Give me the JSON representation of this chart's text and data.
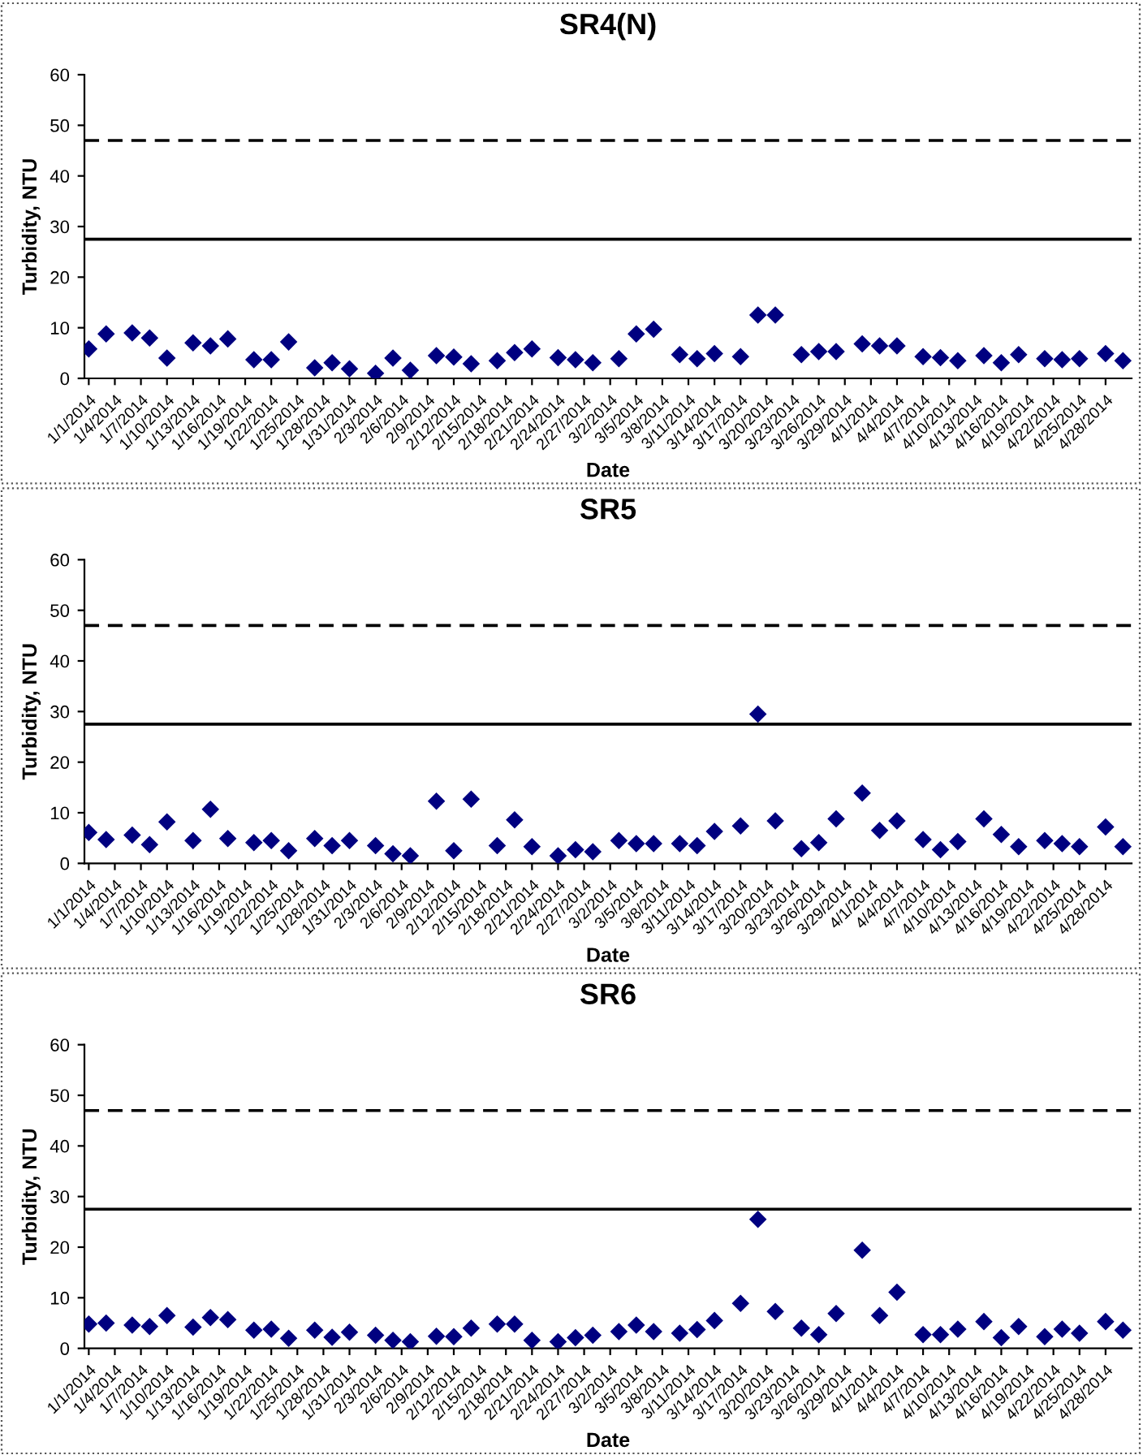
{
  "chart_data": [
    {
      "type": "scatter",
      "title": "SR4(N)",
      "xlabel": "Date",
      "ylabel": "Turbidity, NTU",
      "x": [
        "2014-01-01",
        "2014-01-03",
        "2014-01-06",
        "2014-01-08",
        "2014-01-10",
        "2014-01-13",
        "2014-01-15",
        "2014-01-17",
        "2014-01-20",
        "2014-01-22",
        "2014-01-24",
        "2014-01-27",
        "2014-01-29",
        "2014-01-31",
        "2014-02-03",
        "2014-02-05",
        "2014-02-07",
        "2014-02-10",
        "2014-02-12",
        "2014-02-14",
        "2014-02-17",
        "2014-02-19",
        "2014-02-21",
        "2014-02-24",
        "2014-02-26",
        "2014-02-28",
        "2014-03-03",
        "2014-03-05",
        "2014-03-07",
        "2014-03-10",
        "2014-03-12",
        "2014-03-14",
        "2014-03-17",
        "2014-03-19",
        "2014-03-21",
        "2014-03-24",
        "2014-03-26",
        "2014-03-28",
        "2014-03-31",
        "2014-04-02",
        "2014-04-04",
        "2014-04-07",
        "2014-04-09",
        "2014-04-11",
        "2014-04-14",
        "2014-04-16",
        "2014-04-18",
        "2014-04-21",
        "2014-04-23",
        "2014-04-25",
        "2014-04-28",
        "2014-04-30"
      ],
      "series": [
        {
          "color": "#000080",
          "values": [
            5.8,
            8.8,
            9.0,
            8.0,
            4.0,
            7.0,
            6.4,
            7.8,
            3.7,
            3.7,
            7.2,
            2.1,
            3.1,
            1.9,
            1.0,
            4.0,
            1.6,
            4.5,
            4.2,
            2.9,
            3.5,
            5.1,
            5.8,
            4.1,
            3.7,
            3.1,
            3.9,
            8.8,
            9.7,
            4.7,
            3.9,
            4.9,
            4.3,
            12.5,
            12.5,
            4.7,
            5.3,
            5.3,
            6.8,
            6.4,
            6.4,
            4.3,
            4.1,
            3.5,
            4.5,
            3.1,
            4.7,
            3.9,
            3.7,
            3.9,
            4.9,
            3.5
          ]
        }
      ],
      "marker": "diamond",
      "grid": false,
      "ylim": [
        0,
        60
      ],
      "yticks": [
        0,
        10,
        20,
        30,
        40,
        50,
        60
      ],
      "xlim": [
        "2013-12-31T12:00",
        "2014-05-01"
      ],
      "xticks": [
        {
          "value": "2014-01-01",
          "label": "1/1/2014"
        },
        {
          "value": "2014-01-04",
          "label": "1/4/2014"
        },
        {
          "value": "2014-01-07",
          "label": "1/7/2014"
        },
        {
          "value": "2014-01-10",
          "label": "1/10/2014"
        },
        {
          "value": "2014-01-13",
          "label": "1/13/2014"
        },
        {
          "value": "2014-01-16",
          "label": "1/16/2014"
        },
        {
          "value": "2014-01-19",
          "label": "1/19/2014"
        },
        {
          "value": "2014-01-22",
          "label": "1/22/2014"
        },
        {
          "value": "2014-01-25",
          "label": "1/25/2014"
        },
        {
          "value": "2014-01-28",
          "label": "1/28/2014"
        },
        {
          "value": "2014-01-31",
          "label": "1/31/2014"
        },
        {
          "value": "2014-02-03",
          "label": "2/3/2014"
        },
        {
          "value": "2014-02-06",
          "label": "2/6/2014"
        },
        {
          "value": "2014-02-09",
          "label": "2/9/2014"
        },
        {
          "value": "2014-02-12",
          "label": "2/12/2014"
        },
        {
          "value": "2014-02-15",
          "label": "2/15/2014"
        },
        {
          "value": "2014-02-18",
          "label": "2/18/2014"
        },
        {
          "value": "2014-02-21",
          "label": "2/21/2014"
        },
        {
          "value": "2014-02-24",
          "label": "2/24/2014"
        },
        {
          "value": "2014-02-27",
          "label": "2/27/2014"
        },
        {
          "value": "2014-03-02",
          "label": "3/2/2014"
        },
        {
          "value": "2014-03-05",
          "label": "3/5/2014"
        },
        {
          "value": "2014-03-08",
          "label": "3/8/2014"
        },
        {
          "value": "2014-03-11",
          "label": "3/11/2014"
        },
        {
          "value": "2014-03-14",
          "label": "3/14/2014"
        },
        {
          "value": "2014-03-17",
          "label": "3/17/2014"
        },
        {
          "value": "2014-03-20",
          "label": "3/20/2014"
        },
        {
          "value": "2014-03-23",
          "label": "3/23/2014"
        },
        {
          "value": "2014-03-26",
          "label": "3/26/2014"
        },
        {
          "value": "2014-03-29",
          "label": "3/29/2014"
        },
        {
          "value": "2014-04-01",
          "label": "4/1/2014"
        },
        {
          "value": "2014-04-04",
          "label": "4/4/2014"
        },
        {
          "value": "2014-04-07",
          "label": "4/7/2014"
        },
        {
          "value": "2014-04-10",
          "label": "4/10/2014"
        },
        {
          "value": "2014-04-13",
          "label": "4/13/2014"
        },
        {
          "value": "2014-04-16",
          "label": "4/16/2014"
        },
        {
          "value": "2014-04-19",
          "label": "4/19/2014"
        },
        {
          "value": "2014-04-22",
          "label": "4/22/2014"
        },
        {
          "value": "2014-04-25",
          "label": "4/25/2014"
        },
        {
          "value": "2014-04-28",
          "label": "4/28/2014"
        }
      ],
      "ref_lines": [
        {
          "axis": "y",
          "value": 27.5,
          "color": "#000000",
          "line_style": "solid"
        },
        {
          "axis": "y",
          "value": 47,
          "color": "#000000",
          "line_style": "dashed"
        }
      ]
    },
    {
      "type": "scatter",
      "title": "SR5",
      "xlabel": "Date",
      "ylabel": "Turbidity, NTU",
      "x": [
        "2014-01-01",
        "2014-01-03",
        "2014-01-06",
        "2014-01-08",
        "2014-01-10",
        "2014-01-13",
        "2014-01-15",
        "2014-01-17",
        "2014-01-20",
        "2014-01-22",
        "2014-01-24",
        "2014-01-27",
        "2014-01-29",
        "2014-01-31",
        "2014-02-03",
        "2014-02-05",
        "2014-02-07",
        "2014-02-10",
        "2014-02-12",
        "2014-02-14",
        "2014-02-17",
        "2014-02-19",
        "2014-02-21",
        "2014-02-24",
        "2014-02-26",
        "2014-02-28",
        "2014-03-03",
        "2014-03-05",
        "2014-03-07",
        "2014-03-10",
        "2014-03-12",
        "2014-03-14",
        "2014-03-17",
        "2014-03-19",
        "2014-03-21",
        "2014-03-24",
        "2014-03-26",
        "2014-03-28",
        "2014-03-31",
        "2014-04-02",
        "2014-04-04",
        "2014-04-07",
        "2014-04-09",
        "2014-04-11",
        "2014-04-14",
        "2014-04-16",
        "2014-04-18",
        "2014-04-21",
        "2014-04-23",
        "2014-04-25",
        "2014-04-28",
        "2014-04-30"
      ],
      "series": [
        {
          "color": "#000080",
          "values": [
            6.1,
            4.7,
            5.6,
            3.7,
            8.2,
            4.5,
            10.7,
            4.9,
            4.1,
            4.5,
            2.5,
            4.9,
            3.5,
            4.5,
            3.5,
            1.9,
            1.5,
            12.3,
            2.5,
            12.7,
            3.5,
            8.6,
            3.3,
            1.5,
            2.7,
            2.3,
            4.5,
            3.9,
            3.9,
            3.9,
            3.5,
            6.3,
            7.4,
            29.5,
            8.4,
            2.9,
            4.1,
            8.8,
            13.9,
            6.5,
            8.4,
            4.7,
            2.7,
            4.3,
            8.8,
            5.7,
            3.3,
            4.5,
            3.9,
            3.3,
            7.2,
            3.3
          ]
        }
      ],
      "marker": "diamond",
      "grid": false,
      "ylim": [
        0,
        60
      ],
      "yticks": [
        0,
        10,
        20,
        30,
        40,
        50,
        60
      ],
      "xlim": [
        "2013-12-31T12:00",
        "2014-05-01"
      ],
      "xticks": [
        {
          "value": "2014-01-01",
          "label": "1/1/2014"
        },
        {
          "value": "2014-01-04",
          "label": "1/4/2014"
        },
        {
          "value": "2014-01-07",
          "label": "1/7/2014"
        },
        {
          "value": "2014-01-10",
          "label": "1/10/2014"
        },
        {
          "value": "2014-01-13",
          "label": "1/13/2014"
        },
        {
          "value": "2014-01-16",
          "label": "1/16/2014"
        },
        {
          "value": "2014-01-19",
          "label": "1/19/2014"
        },
        {
          "value": "2014-01-22",
          "label": "1/22/2014"
        },
        {
          "value": "2014-01-25",
          "label": "1/25/2014"
        },
        {
          "value": "2014-01-28",
          "label": "1/28/2014"
        },
        {
          "value": "2014-01-31",
          "label": "1/31/2014"
        },
        {
          "value": "2014-02-03",
          "label": "2/3/2014"
        },
        {
          "value": "2014-02-06",
          "label": "2/6/2014"
        },
        {
          "value": "2014-02-09",
          "label": "2/9/2014"
        },
        {
          "value": "2014-02-12",
          "label": "2/12/2014"
        },
        {
          "value": "2014-02-15",
          "label": "2/15/2014"
        },
        {
          "value": "2014-02-18",
          "label": "2/18/2014"
        },
        {
          "value": "2014-02-21",
          "label": "2/21/2014"
        },
        {
          "value": "2014-02-24",
          "label": "2/24/2014"
        },
        {
          "value": "2014-02-27",
          "label": "2/27/2014"
        },
        {
          "value": "2014-03-02",
          "label": "3/2/2014"
        },
        {
          "value": "2014-03-05",
          "label": "3/5/2014"
        },
        {
          "value": "2014-03-08",
          "label": "3/8/2014"
        },
        {
          "value": "2014-03-11",
          "label": "3/11/2014"
        },
        {
          "value": "2014-03-14",
          "label": "3/14/2014"
        },
        {
          "value": "2014-03-17",
          "label": "3/17/2014"
        },
        {
          "value": "2014-03-20",
          "label": "3/20/2014"
        },
        {
          "value": "2014-03-23",
          "label": "3/23/2014"
        },
        {
          "value": "2014-03-26",
          "label": "3/26/2014"
        },
        {
          "value": "2014-03-29",
          "label": "3/29/2014"
        },
        {
          "value": "2014-04-01",
          "label": "4/1/2014"
        },
        {
          "value": "2014-04-04",
          "label": "4/4/2014"
        },
        {
          "value": "2014-04-07",
          "label": "4/7/2014"
        },
        {
          "value": "2014-04-10",
          "label": "4/10/2014"
        },
        {
          "value": "2014-04-13",
          "label": "4/13/2014"
        },
        {
          "value": "2014-04-16",
          "label": "4/16/2014"
        },
        {
          "value": "2014-04-19",
          "label": "4/19/2014"
        },
        {
          "value": "2014-04-22",
          "label": "4/22/2014"
        },
        {
          "value": "2014-04-25",
          "label": "4/25/2014"
        },
        {
          "value": "2014-04-28",
          "label": "4/28/2014"
        }
      ],
      "ref_lines": [
        {
          "axis": "y",
          "value": 27.5,
          "color": "#000000",
          "line_style": "solid"
        },
        {
          "axis": "y",
          "value": 47,
          "color": "#000000",
          "line_style": "dashed"
        }
      ]
    },
    {
      "type": "scatter",
      "title": "SR6",
      "xlabel": "Date",
      "ylabel": "Turbidity, NTU",
      "x": [
        "2014-01-01",
        "2014-01-03",
        "2014-01-06",
        "2014-01-08",
        "2014-01-10",
        "2014-01-13",
        "2014-01-15",
        "2014-01-17",
        "2014-01-20",
        "2014-01-22",
        "2014-01-24",
        "2014-01-27",
        "2014-01-29",
        "2014-01-31",
        "2014-02-03",
        "2014-02-05",
        "2014-02-07",
        "2014-02-10",
        "2014-02-12",
        "2014-02-14",
        "2014-02-17",
        "2014-02-19",
        "2014-02-21",
        "2014-02-24",
        "2014-02-26",
        "2014-02-28",
        "2014-03-03",
        "2014-03-05",
        "2014-03-07",
        "2014-03-10",
        "2014-03-12",
        "2014-03-14",
        "2014-03-17",
        "2014-03-19",
        "2014-03-21",
        "2014-03-24",
        "2014-03-26",
        "2014-03-28",
        "2014-03-31",
        "2014-04-02",
        "2014-04-04",
        "2014-04-07",
        "2014-04-09",
        "2014-04-11",
        "2014-04-14",
        "2014-04-16",
        "2014-04-18",
        "2014-04-21",
        "2014-04-23",
        "2014-04-25",
        "2014-04-28",
        "2014-04-30"
      ],
      "series": [
        {
          "color": "#000080",
          "values": [
            4.8,
            5.0,
            4.6,
            4.3,
            6.5,
            4.2,
            6.1,
            5.7,
            3.6,
            3.8,
            2.0,
            3.6,
            2.2,
            3.2,
            2.6,
            1.6,
            1.3,
            2.4,
            2.3,
            4.0,
            4.8,
            4.8,
            1.6,
            1.3,
            2.1,
            2.6,
            3.3,
            4.6,
            3.3,
            3.0,
            3.7,
            5.5,
            8.9,
            25.5,
            7.3,
            4.0,
            2.7,
            6.9,
            19.4,
            6.5,
            11.1,
            2.7,
            2.7,
            3.8,
            5.3,
            2.1,
            4.3,
            2.3,
            3.8,
            3.0,
            5.3,
            3.6
          ]
        }
      ],
      "marker": "diamond",
      "grid": false,
      "ylim": [
        0,
        60
      ],
      "yticks": [
        0,
        10,
        20,
        30,
        40,
        50,
        60
      ],
      "xlim": [
        "2013-12-31T12:00",
        "2014-05-01"
      ],
      "xticks": [
        {
          "value": "2014-01-01",
          "label": "1/1/2014"
        },
        {
          "value": "2014-01-04",
          "label": "1/4/2014"
        },
        {
          "value": "2014-01-07",
          "label": "1/7/2014"
        },
        {
          "value": "2014-01-10",
          "label": "1/10/2014"
        },
        {
          "value": "2014-01-13",
          "label": "1/13/2014"
        },
        {
          "value": "2014-01-16",
          "label": "1/16/2014"
        },
        {
          "value": "2014-01-19",
          "label": "1/19/2014"
        },
        {
          "value": "2014-01-22",
          "label": "1/22/2014"
        },
        {
          "value": "2014-01-25",
          "label": "1/25/2014"
        },
        {
          "value": "2014-01-28",
          "label": "1/28/2014"
        },
        {
          "value": "2014-01-31",
          "label": "1/31/2014"
        },
        {
          "value": "2014-02-03",
          "label": "2/3/2014"
        },
        {
          "value": "2014-02-06",
          "label": "2/6/2014"
        },
        {
          "value": "2014-02-09",
          "label": "2/9/2014"
        },
        {
          "value": "2014-02-12",
          "label": "2/12/2014"
        },
        {
          "value": "2014-02-15",
          "label": "2/15/2014"
        },
        {
          "value": "2014-02-18",
          "label": "2/18/2014"
        },
        {
          "value": "2014-02-21",
          "label": "2/21/2014"
        },
        {
          "value": "2014-02-24",
          "label": "2/24/2014"
        },
        {
          "value": "2014-02-27",
          "label": "2/27/2014"
        },
        {
          "value": "2014-03-02",
          "label": "3/2/2014"
        },
        {
          "value": "2014-03-05",
          "label": "3/5/2014"
        },
        {
          "value": "2014-03-08",
          "label": "3/8/2014"
        },
        {
          "value": "2014-03-11",
          "label": "3/11/2014"
        },
        {
          "value": "2014-03-14",
          "label": "3/14/2014"
        },
        {
          "value": "2014-03-17",
          "label": "3/17/2014"
        },
        {
          "value": "2014-03-20",
          "label": "3/20/2014"
        },
        {
          "value": "2014-03-23",
          "label": "3/23/2014"
        },
        {
          "value": "2014-03-26",
          "label": "3/26/2014"
        },
        {
          "value": "2014-03-29",
          "label": "3/29/2014"
        },
        {
          "value": "2014-04-01",
          "label": "4/1/2014"
        },
        {
          "value": "2014-04-04",
          "label": "4/4/2014"
        },
        {
          "value": "2014-04-07",
          "label": "4/7/2014"
        },
        {
          "value": "2014-04-10",
          "label": "4/10/2014"
        },
        {
          "value": "2014-04-13",
          "label": "4/13/2014"
        },
        {
          "value": "2014-04-16",
          "label": "4/16/2014"
        },
        {
          "value": "2014-04-19",
          "label": "4/19/2014"
        },
        {
          "value": "2014-04-22",
          "label": "4/22/2014"
        },
        {
          "value": "2014-04-25",
          "label": "4/25/2014"
        },
        {
          "value": "2014-04-28",
          "label": "4/28/2014"
        }
      ],
      "ref_lines": [
        {
          "axis": "y",
          "value": 27.5,
          "color": "#000000",
          "line_style": "solid"
        },
        {
          "axis": "y",
          "value": 47,
          "color": "#000000",
          "line_style": "dashed"
        }
      ]
    }
  ]
}
